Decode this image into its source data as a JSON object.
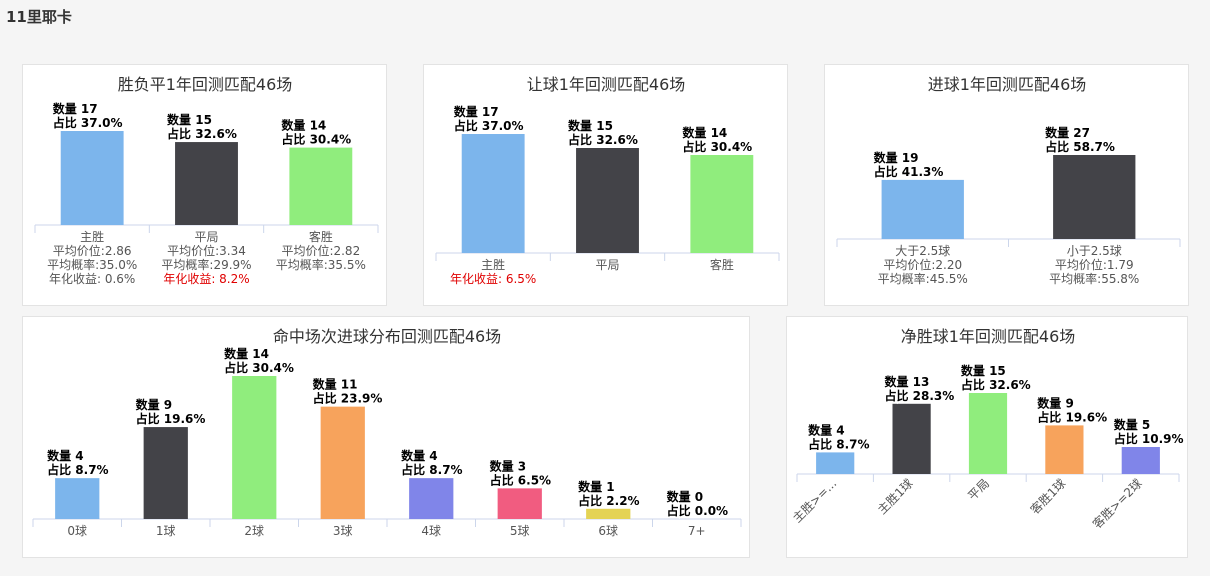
{
  "page": {
    "title": "11里耶卡"
  },
  "chart_data": [
    {
      "id": "c1",
      "type": "bar",
      "title": "胜负平1年回测匹配46场",
      "categories": [
        "主胜",
        "平局",
        "客胜"
      ],
      "values": [
        17,
        15,
        14
      ],
      "percents": [
        "37.0%",
        "32.6%",
        "30.4%"
      ],
      "colors": [
        "#7cb5ec",
        "#434348",
        "#90ed7d"
      ],
      "ylim": [
        0,
        17
      ],
      "category_stats": [
        [
          "平均价位:2.86",
          "平均概率:35.0%",
          "年化收益: 0.6%"
        ],
        [
          "平均价位:3.34",
          "平均概率:29.9%",
          "年化收益: 8.2%"
        ],
        [
          "平均价位:2.82",
          "平均概率:35.5%"
        ]
      ],
      "highlight_red": [
        [],
        [
          "年化收益: 8.2%"
        ],
        []
      ]
    },
    {
      "id": "c2",
      "type": "bar",
      "title": "让球1年回测匹配46场",
      "categories": [
        "主胜",
        "平局",
        "客胜"
      ],
      "values": [
        17,
        15,
        14
      ],
      "percents": [
        "37.0%",
        "32.6%",
        "30.4%"
      ],
      "colors": [
        "#7cb5ec",
        "#434348",
        "#90ed7d"
      ],
      "ylim": [
        0,
        17
      ],
      "category_stats": [
        [
          "年化收益: 6.5%"
        ],
        [],
        []
      ],
      "highlight_red": [
        [
          "年化收益: 6.5%"
        ],
        [],
        []
      ]
    },
    {
      "id": "c3",
      "type": "bar",
      "title": "进球1年回测匹配46场",
      "categories": [
        "大于2.5球",
        "小于2.5球"
      ],
      "values": [
        19,
        27
      ],
      "percents": [
        "41.3%",
        "58.7%"
      ],
      "colors": [
        "#7cb5ec",
        "#434348"
      ],
      "ylim": [
        0,
        27
      ],
      "category_stats": [
        [
          "平均价位:2.20",
          "平均概率:45.5%"
        ],
        [
          "平均价位:1.79",
          "平均概率:55.8%"
        ]
      ],
      "highlight_red": [
        [],
        []
      ]
    },
    {
      "id": "c4",
      "type": "bar",
      "title": "命中场次进球分布回测匹配46场",
      "categories": [
        "0球",
        "1球",
        "2球",
        "3球",
        "4球",
        "5球",
        "6球",
        "7+"
      ],
      "values": [
        4,
        9,
        14,
        11,
        4,
        3,
        1,
        0
      ],
      "percents": [
        "8.7%",
        "19.6%",
        "30.4%",
        "23.9%",
        "8.7%",
        "6.5%",
        "2.2%",
        "0.0%"
      ],
      "colors": [
        "#7cb5ec",
        "#434348",
        "#90ed7d",
        "#f7a35c",
        "#8085e9",
        "#f15c80",
        "#e4d354",
        "#2b908f"
      ],
      "ylim": [
        0,
        14
      ]
    },
    {
      "id": "c5",
      "type": "bar",
      "title": "净胜球1年回测匹配46场",
      "categories": [
        "主胜>=...",
        "主胜1球",
        "平局",
        "客胜1球",
        "客胜>=2球"
      ],
      "values": [
        4,
        13,
        15,
        9,
        5
      ],
      "percents": [
        "8.7%",
        "28.3%",
        "32.6%",
        "19.6%",
        "10.9%"
      ],
      "colors": [
        "#7cb5ec",
        "#434348",
        "#90ed7d",
        "#f7a35c",
        "#8085e9"
      ],
      "ylim": [
        0,
        15
      ]
    }
  ],
  "labels": {
    "count_prefix": "数量 ",
    "ratio_prefix": "占比 "
  }
}
